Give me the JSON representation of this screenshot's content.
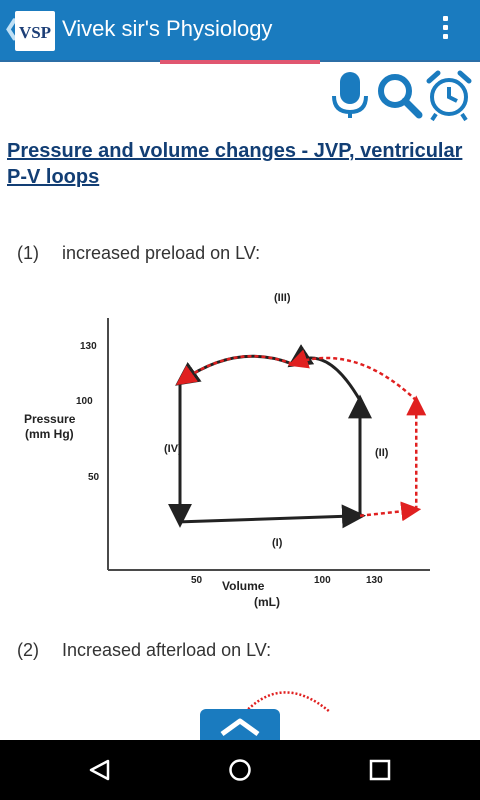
{
  "appbar": {
    "title": "Vivek sir's Physiology",
    "logo_text": "VSP"
  },
  "icons": [
    "microphone-icon",
    "search-icon",
    "alarm-clock-icon"
  ],
  "content": {
    "heading": "Pressure and volume changes - JVP, ventricular P-V loops",
    "items": [
      {
        "num": "(1)",
        "text": "increased preload on LV:"
      },
      {
        "num": "(2)",
        "text": "Increased afterload on LV:"
      }
    ]
  },
  "chart_data": {
    "type": "line",
    "xlabel": "Volume\n(mL)",
    "ylabel": "Pressure\n(mm Hg)",
    "x_ticks": [
      50,
      100,
      130
    ],
    "y_ticks": [
      50,
      100,
      130
    ],
    "phase_labels": [
      "(I)",
      "(II)",
      "(III)",
      "(IV)"
    ],
    "series": [
      {
        "style": "solid",
        "color": "#222222",
        "points": [
          [
            50,
            10
          ],
          [
            130,
            15
          ],
          [
            130,
            110
          ],
          [
            100,
            140
          ],
          [
            50,
            125
          ],
          [
            50,
            10
          ]
        ]
      },
      {
        "style": "dashed",
        "color": "#e02020",
        "points": [
          [
            130,
            15
          ],
          [
            155,
            20
          ],
          [
            155,
            110
          ],
          [
            100,
            140
          ],
          [
            50,
            125
          ]
        ]
      }
    ]
  },
  "fab": {
    "icon": "chevron-up-icon"
  },
  "navbar": [
    "back-icon",
    "home-icon",
    "recents-icon"
  ]
}
